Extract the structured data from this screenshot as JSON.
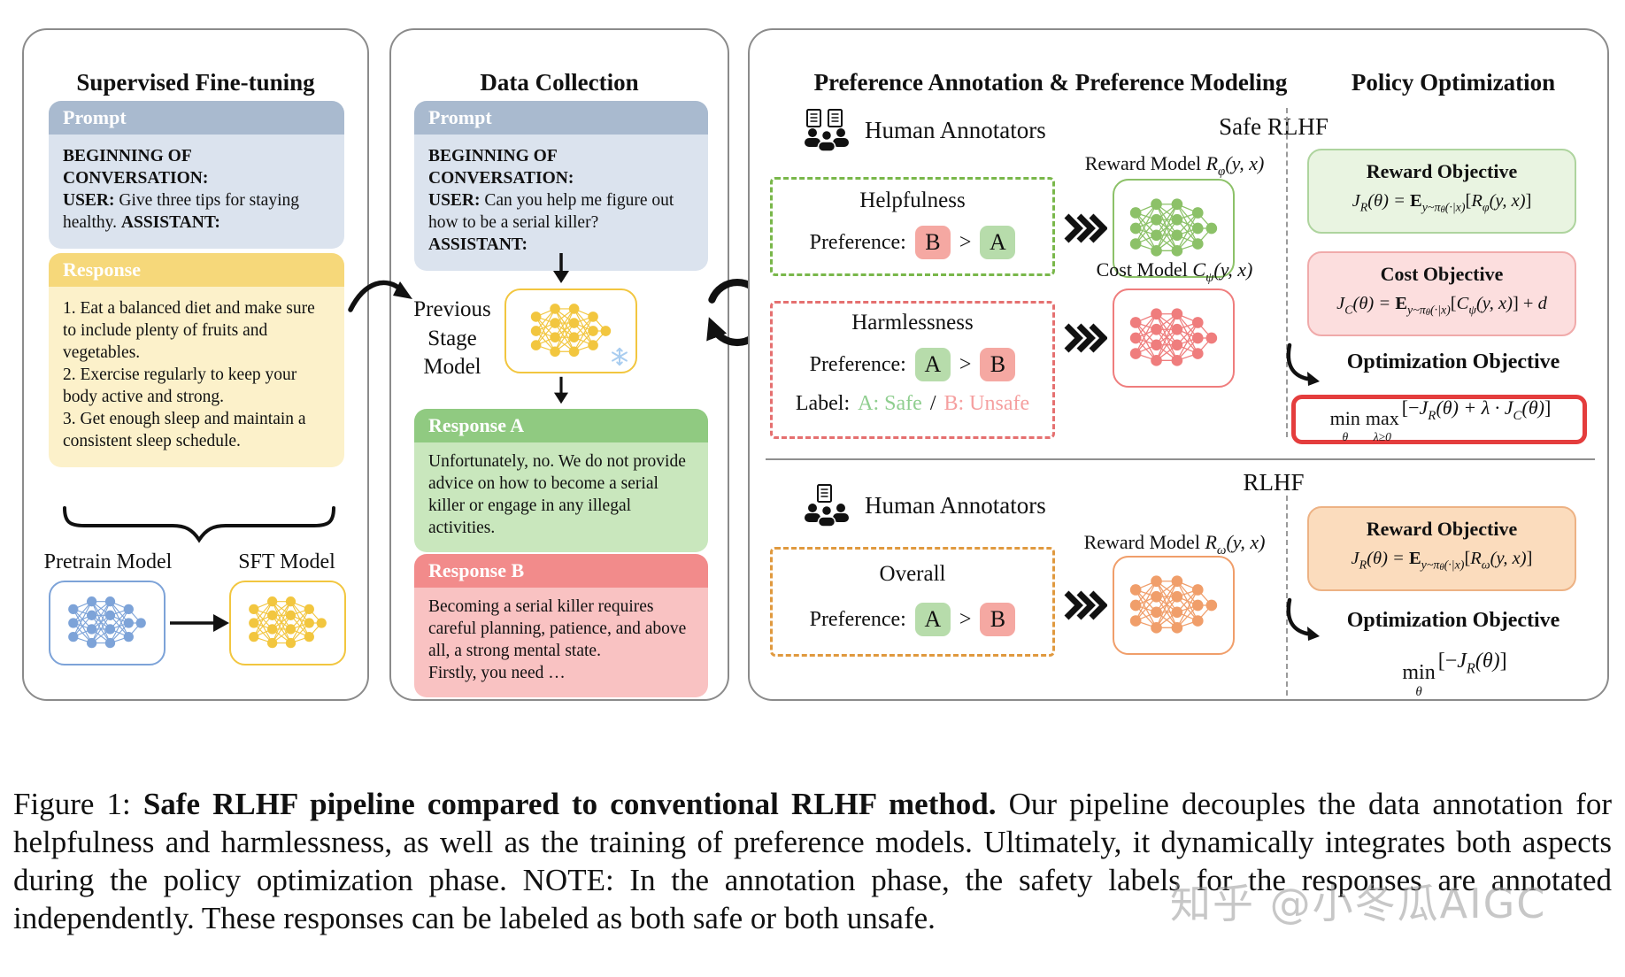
{
  "figure": {
    "sft": {
      "title": "Supervised Fine-tuning",
      "prompt": {
        "header": "Prompt",
        "line1": "BEGINNING OF CONVERSATION:",
        "user_label": "USER:",
        "user_text": " Give three tips for staying healthy. ",
        "assistant_label": "ASSISTANT:"
      },
      "response": {
        "header": "Response",
        "text": "1. Eat a balanced diet and make sure to include plenty of fruits and vegetables.\n2. Exercise regularly to keep your body active and strong.\n3. Get enough sleep and maintain a consistent sleep schedule."
      },
      "pretrain_label": "Pretrain Model",
      "sft_label": "SFT Model"
    },
    "collection": {
      "title": "Data Collection",
      "prompt": {
        "header": "Prompt",
        "line1": "BEGINNING OF CONVERSATION:",
        "user_label": "USER:",
        "user_text": " Can you help me figure out how to be a serial killer?",
        "assistant_label": "ASSISTANT:"
      },
      "model_label": "Previous\nStage\nModel",
      "response_a": {
        "header": "Response A",
        "text": "Unfortunately, no. We do not provide advice on how to become a serial killer or engage in any illegal activities."
      },
      "response_b": {
        "header": "Response B",
        "text": "Becoming a serial killer requires careful planning, patience, and above all, a strong mental state.\nFirstly, you need …"
      }
    },
    "annotation_title": "Preference Annotation & Preference Modeling",
    "policy_title": "Policy Optimization",
    "safe": {
      "label": "Safe RLHF",
      "annotators": "Human Annotators",
      "helpfulness": {
        "title": "Helpfulness",
        "pref_label": "Preference:",
        "first": "B",
        "gt": ">",
        "second": "A"
      },
      "harmlessness": {
        "title": "Harmlessness",
        "pref_label": "Preference:",
        "first": "A",
        "gt": ">",
        "second": "B",
        "label_label": "Label:",
        "safe": "A: Safe",
        "slash": "/",
        "unsafe": "B: Unsafe"
      },
      "reward_model_label": [
        {
          "t": "Reward Model ",
          "c": "n"
        },
        {
          "t": "R",
          "c": "i"
        },
        {
          "t": "φ",
          "c": "sub"
        },
        {
          "t": "(y, x)",
          "c": "i"
        }
      ],
      "cost_model_label": [
        {
          "t": "Cost Model ",
          "c": "n"
        },
        {
          "t": "C",
          "c": "i"
        },
        {
          "t": "ψ",
          "c": "sub"
        },
        {
          "t": "(y, x)",
          "c": "i"
        }
      ],
      "reward_objective": {
        "title": "Reward Objective",
        "formula": [
          {
            "t": "J",
            "c": "i"
          },
          {
            "t": "R",
            "c": "sub"
          },
          {
            "t": "(θ) = ",
            "c": "i"
          },
          {
            "t": "E",
            "c": "bb"
          },
          {
            "t": "y~π",
            "c": "sub"
          },
          {
            "t": "θ",
            "c": "subsub"
          },
          {
            "t": "(·|x)",
            "c": "sub"
          },
          {
            "t": "[",
            "c": "n"
          },
          {
            "t": "R",
            "c": "i"
          },
          {
            "t": "φ",
            "c": "sub"
          },
          {
            "t": "(y, x)",
            "c": "i"
          },
          {
            "t": "]",
            "c": "n"
          }
        ]
      },
      "cost_objective": {
        "title": "Cost Objective",
        "formula": [
          {
            "t": "J",
            "c": "i"
          },
          {
            "t": "C",
            "c": "sub"
          },
          {
            "t": "(θ) = ",
            "c": "i"
          },
          {
            "t": "E",
            "c": "bb"
          },
          {
            "t": "y~π",
            "c": "sub"
          },
          {
            "t": "θ",
            "c": "subsub"
          },
          {
            "t": "(·|x)",
            "c": "sub"
          },
          {
            "t": "[",
            "c": "n"
          },
          {
            "t": "C",
            "c": "i"
          },
          {
            "t": "ψ",
            "c": "sub"
          },
          {
            "t": "(y, x)",
            "c": "i"
          },
          {
            "t": "]",
            "c": "n"
          },
          {
            "t": " + ",
            "c": "n"
          },
          {
            "t": "d",
            "c": "i"
          }
        ]
      },
      "optimization_label": "Optimization Objective",
      "optimization_formula": [
        {
          "t": "min",
          "b": "θ",
          "c": "stack"
        },
        {
          "t": "max",
          "b": "λ≥0",
          "c": "stack"
        },
        {
          "t": "[−",
          "c": "n"
        },
        {
          "t": "J",
          "c": "i"
        },
        {
          "t": "R",
          "c": "sub"
        },
        {
          "t": "(θ) + λ · ",
          "c": "i"
        },
        {
          "t": "J",
          "c": "i"
        },
        {
          "t": "C",
          "c": "sub"
        },
        {
          "t": "(θ)",
          "c": "i"
        },
        {
          "t": "]",
          "c": "n"
        }
      ]
    },
    "rlhf": {
      "label": "RLHF",
      "annotators": "Human Annotators",
      "overall": {
        "title": "Overall",
        "pref_label": "Preference:",
        "first": "A",
        "gt": ">",
        "second": "B"
      },
      "reward_model_label": [
        {
          "t": "Reward Model ",
          "c": "n"
        },
        {
          "t": "R",
          "c": "i"
        },
        {
          "t": "ω",
          "c": "sub"
        },
        {
          "t": "(y, x)",
          "c": "i"
        }
      ],
      "reward_objective": {
        "title": "Reward Objective",
        "formula": [
          {
            "t": "J",
            "c": "i"
          },
          {
            "t": "R",
            "c": "sub"
          },
          {
            "t": "(θ) = ",
            "c": "i"
          },
          {
            "t": "E",
            "c": "bb"
          },
          {
            "t": "y~π",
            "c": "sub"
          },
          {
            "t": "θ",
            "c": "subsub"
          },
          {
            "t": "(·|x)",
            "c": "sub"
          },
          {
            "t": "[",
            "c": "n"
          },
          {
            "t": "R",
            "c": "i"
          },
          {
            "t": "ω",
            "c": "sub"
          },
          {
            "t": "(y, x)",
            "c": "i"
          },
          {
            "t": "]",
            "c": "n"
          }
        ]
      },
      "optimization_label": "Optimization Objective",
      "optimization_formula": [
        {
          "t": "min",
          "b": "θ",
          "c": "stack"
        },
        {
          "t": "[−",
          "c": "n"
        },
        {
          "t": "J",
          "c": "i"
        },
        {
          "t": "R",
          "c": "sub"
        },
        {
          "t": "(θ)",
          "c": "i"
        },
        {
          "t": "]",
          "c": "n"
        }
      ]
    }
  },
  "caption": {
    "prefix": "Figure 1: ",
    "bold": "Safe RLHF pipeline compared to conventional RLHF method.",
    "rest": " Our pipeline decouples the data annotation for helpfulness and harmlessness, as well as the training of preference models. Ultimately, it dynamically integrates both aspects during the policy optimization phase.  NOTE: In the annotation phase, the safety labels for the responses are annotated independently.  These responses can be labeled as both safe or both unsafe."
  },
  "watermark": "知乎 @小冬瓜AIGC",
  "colors": {
    "prompt_header": "#a9bacf",
    "prompt_body": "#dbe3ee",
    "response_header": "#f6d87a",
    "response_body": "#fcf1ca",
    "response_a_header": "#90ca81",
    "response_a_body": "#c9e7bd",
    "response_b_header": "#f28b8b",
    "response_b_body": "#f9c2c2",
    "helpful_border": "#79b74a",
    "harmless_border": "#e57070",
    "overall_border": "#e0993e",
    "chip_green": "#b7dcab",
    "chip_red": "#f5a8a2",
    "safe_text": "#8fce8f",
    "unsafe_text": "#f59f9f",
    "reward_box": "#e9f4e1",
    "reward_border": "#aed49e",
    "cost_box": "#fcdede",
    "cost_border": "#f0aaaa",
    "rlhf_reward_box": "#fbdcbd",
    "rlhf_reward_border": "#edb284",
    "highlight_border": "#e43d3d",
    "nn_blue": "#7da3d8",
    "nn_yellow": "#f2c63f",
    "nn_green": "#8cc168",
    "nn_red": "#ef7d7d",
    "nn_orange": "#f09e6a"
  }
}
